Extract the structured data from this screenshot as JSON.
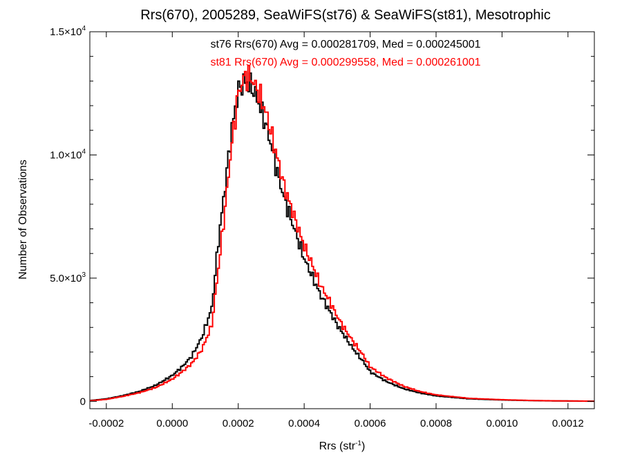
{
  "chart_data": {
    "type": "line",
    "step": true,
    "title": "Rrs(670), 2005289, SeaWiFS(st76) & SeaWiFS(st81), Mesotrophic",
    "xlabel": {
      "main": "Rrs (str",
      "sup": "-1",
      "end": ")"
    },
    "ylabel": "Number of Observations",
    "xlim": [
      -0.00025,
      0.00128
    ],
    "ylim": [
      -300,
      15000
    ],
    "x_ticks": [
      {
        "value": -0.0002,
        "label": "-0.0002"
      },
      {
        "value": 0.0,
        "label": "0.0000"
      },
      {
        "value": 0.0002,
        "label": "0.0002"
      },
      {
        "value": 0.0004,
        "label": "0.0004"
      },
      {
        "value": 0.0006,
        "label": "0.0006"
      },
      {
        "value": 0.0008,
        "label": "0.0008"
      },
      {
        "value": 0.001,
        "label": "0.0010"
      },
      {
        "value": 0.0012,
        "label": "0.0012"
      }
    ],
    "y_ticks": [
      {
        "value": 0,
        "mantissa": "0",
        "exp": ""
      },
      {
        "value": 5000,
        "mantissa": "5.0×10",
        "exp": "3"
      },
      {
        "value": 10000,
        "mantissa": "1.0×10",
        "exp": "4"
      },
      {
        "value": 15000,
        "mantissa": "1.5×10",
        "exp": "4"
      }
    ],
    "annotations": [
      {
        "text": "st76 Rrs(670) Avg = 0.000281709, Med = 0.000245001",
        "color": "#000000"
      },
      {
        "text": "st81 Rrs(670) Avg = 0.000299558, Med = 0.000261001",
        "color": "#ff0000"
      }
    ],
    "series": [
      {
        "color": "#000000",
        "x": [
          -0.00025,
          -0.0002,
          -0.00015,
          -0.0001,
          -5e-05,
          0.0,
          3e-05,
          6e-05,
          9e-05,
          0.00012,
          0.00014,
          0.00016,
          0.00018,
          0.0002,
          0.00022,
          0.00024,
          0.00026,
          0.00028,
          0.0003,
          0.00032,
          0.00034,
          0.00036,
          0.00038,
          0.0004,
          0.00042,
          0.00045,
          0.00048,
          0.0005,
          0.00052,
          0.00055,
          0.00058,
          0.0006,
          0.00065,
          0.0007,
          0.00075,
          0.0008,
          0.0009,
          0.001,
          0.0011,
          0.0012,
          0.00128
        ],
        "y": [
          30,
          100,
          230,
          400,
          650,
          1050,
          1400,
          1850,
          2600,
          3800,
          6500,
          8700,
          11000,
          12600,
          13000,
          12800,
          12200,
          11400,
          10400,
          9200,
          8200,
          7400,
          6600,
          5800,
          5200,
          4300,
          3600,
          3100,
          2700,
          2100,
          1600,
          1200,
          800,
          520,
          340,
          220,
          100,
          55,
          25,
          12,
          5
        ]
      },
      {
        "color": "#ff0000",
        "x": [
          -0.00025,
          -0.0002,
          -0.00015,
          -0.0001,
          -5e-05,
          0.0,
          3e-05,
          6e-05,
          9e-05,
          0.00012,
          0.00014,
          0.00016,
          0.00018,
          0.0002,
          0.00022,
          0.00024,
          0.00026,
          0.00028,
          0.0003,
          0.00032,
          0.00034,
          0.00036,
          0.00038,
          0.0004,
          0.00042,
          0.00045,
          0.00048,
          0.0005,
          0.00052,
          0.00055,
          0.00058,
          0.0006,
          0.00065,
          0.0007,
          0.00075,
          0.0008,
          0.0009,
          0.001,
          0.0011,
          0.0012,
          0.00128
        ],
        "y": [
          20,
          80,
          200,
          350,
          560,
          900,
          1200,
          1550,
          2100,
          3100,
          5400,
          7800,
          10400,
          12500,
          13200,
          13100,
          12600,
          11900,
          10900,
          9800,
          8700,
          7900,
          7100,
          6300,
          5700,
          4700,
          4000,
          3450,
          3000,
          2400,
          1850,
          1400,
          950,
          620,
          400,
          260,
          120,
          65,
          30,
          14,
          6
        ]
      }
    ]
  }
}
